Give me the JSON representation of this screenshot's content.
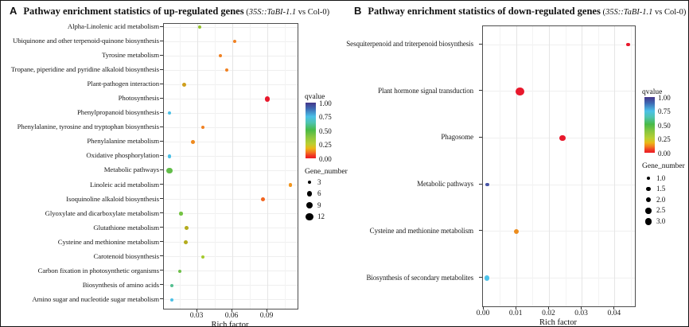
{
  "chart_data": [
    {
      "type": "scatter",
      "panel_label": "A",
      "title_main": "Pathway enrichment statistics of up-regulated genes",
      "title_note_prefix": " (",
      "title_note_italic": "35S::TaBI-1.1",
      "title_note_suffix": " vs Col-0)",
      "xlabel": "Rich factor",
      "xlim": [
        0,
        0.117
      ],
      "xticks": [
        0.03,
        0.06,
        0.09
      ],
      "xtick_labels": [
        "0.03",
        "0.06",
        "0.09"
      ],
      "xticks_minor": [
        0.015,
        0.045,
        0.075,
        0.105
      ],
      "grid": true,
      "legend_position": "right",
      "color_legend": {
        "title": "qvalue",
        "tick_labels": [
          "1.00",
          "0.75",
          "0.50",
          "0.25",
          "0.00"
        ],
        "gradient_stops": [
          {
            "color": "#443589",
            "pos": 0
          },
          {
            "color": "#3e6ab3",
            "pos": 11
          },
          {
            "color": "#4cc1e8",
            "pos": 25
          },
          {
            "color": "#4fc4b0",
            "pos": 36
          },
          {
            "color": "#49ba47",
            "pos": 49
          },
          {
            "color": "#8bc63f",
            "pos": 62
          },
          {
            "color": "#b9cf33",
            "pos": 74
          },
          {
            "color": "#eab818",
            "pos": 82
          },
          {
            "color": "#f4791f",
            "pos": 89
          },
          {
            "color": "#ef3824",
            "pos": 95
          },
          {
            "color": "#ec1c24",
            "pos": 100
          }
        ]
      },
      "size_legend": {
        "title": "Gene_number",
        "tick_labels": [
          "3",
          "6",
          "9",
          "12"
        ],
        "values": [
          3,
          6,
          9,
          12
        ]
      },
      "points": [
        {
          "pathway": "Alpha-Linolenic acid metabolism",
          "rich_factor": 0.032,
          "gene_number": 3,
          "qvalue_approx": 0.3,
          "color": "#93c22c"
        },
        {
          "pathway": "Ubiquinone and other terpenoid-quinone biosynthesis",
          "rich_factor": 0.062,
          "gene_number": 3,
          "qvalue_approx": 0.1,
          "color": "#f08122"
        },
        {
          "pathway": "Tyrosine metabolism",
          "rich_factor": 0.05,
          "gene_number": 3,
          "qvalue_approx": 0.1,
          "color": "#f08122"
        },
        {
          "pathway": "Tropane, piperidine and pyridine alkaloid biosynthesis",
          "rich_factor": 0.055,
          "gene_number": 3,
          "qvalue_approx": 0.1,
          "color": "#f08122"
        },
        {
          "pathway": "Plant-pathogen interaction",
          "rich_factor": 0.019,
          "gene_number": 4,
          "qvalue_approx": 0.2,
          "color": "#cf9f1e"
        },
        {
          "pathway": "Photosynthesis",
          "rich_factor": 0.09,
          "gene_number": 9,
          "qvalue_approx": 0.01,
          "color": "#e8182c"
        },
        {
          "pathway": "Phenylpropanoid biosynthesis",
          "rich_factor": 0.006,
          "gene_number": 3,
          "qvalue_approx": 0.7,
          "color": "#4bc0e6"
        },
        {
          "pathway": "Phenylalanine, tyrosine and tryptophan biosynthesis",
          "rich_factor": 0.035,
          "gene_number": 3,
          "qvalue_approx": 0.1,
          "color": "#f08122"
        },
        {
          "pathway": "Phenylalanine metabolism",
          "rich_factor": 0.026,
          "gene_number": 4,
          "qvalue_approx": 0.12,
          "color": "#ee8a1e"
        },
        {
          "pathway": "Oxidative phosphorylation",
          "rich_factor": 0.006,
          "gene_number": 3,
          "qvalue_approx": 0.7,
          "color": "#4bc0e6"
        },
        {
          "pathway": "Metabolic pathways",
          "rich_factor": 0.006,
          "gene_number": 12,
          "qvalue_approx": 0.4,
          "color": "#62bd4a"
        },
        {
          "pathway": "Linoleic acid metabolism",
          "rich_factor": 0.11,
          "gene_number": 3,
          "qvalue_approx": 0.12,
          "color": "#f3951c"
        },
        {
          "pathway": "Isoquinoline alkaloid biosynthesis",
          "rich_factor": 0.086,
          "gene_number": 4,
          "qvalue_approx": 0.05,
          "color": "#f2641f"
        },
        {
          "pathway": "Glyoxylate and dicarboxylate metabolism",
          "rich_factor": 0.016,
          "gene_number": 3,
          "qvalue_approx": 0.35,
          "color": "#74c343"
        },
        {
          "pathway": "Glutathione metabolism",
          "rich_factor": 0.021,
          "gene_number": 4,
          "qvalue_approx": 0.22,
          "color": "#b4ac1e"
        },
        {
          "pathway": "Cysteine and methionine metabolism",
          "rich_factor": 0.02,
          "gene_number": 4,
          "qvalue_approx": 0.22,
          "color": "#b4ac1e"
        },
        {
          "pathway": "Carotenoid biosynthesis",
          "rich_factor": 0.035,
          "gene_number": 3,
          "qvalue_approx": 0.28,
          "color": "#a5ca2e"
        },
        {
          "pathway": "Carbon fixation in photosynthetic organisms",
          "rich_factor": 0.015,
          "gene_number": 3,
          "qvalue_approx": 0.38,
          "color": "#6ec04a"
        },
        {
          "pathway": "Biosynthesis of amino acids",
          "rich_factor": 0.008,
          "gene_number": 3,
          "qvalue_approx": 0.55,
          "color": "#54bf90"
        },
        {
          "pathway": "Amino sugar and nucleotide sugar metabolism",
          "rich_factor": 0.008,
          "gene_number": 3,
          "qvalue_approx": 0.7,
          "color": "#4bc0e6"
        }
      ]
    },
    {
      "type": "scatter",
      "panel_label": "B",
      "title_main": "Pathway enrichment statistics of down-regulated genes",
      "title_note_prefix": " (",
      "title_note_italic": "35S::TaBI-1.1",
      "title_note_suffix": " vs Col-0)",
      "xlabel": "Rich factor",
      "xlim": [
        0,
        0.046
      ],
      "xticks": [
        0,
        0.01,
        0.02,
        0.03,
        0.04
      ],
      "xtick_labels": [
        "0.00",
        "0.01",
        "0.02",
        "0.03",
        "0.04"
      ],
      "xticks_minor": [
        0.005,
        0.015,
        0.025,
        0.035,
        0.045
      ],
      "grid": true,
      "legend_position": "right",
      "color_legend": {
        "title": "qvalue",
        "tick_labels": [
          "1.00",
          "0.75",
          "0.50",
          "0.25",
          "0.00"
        ],
        "gradient_stops": [
          {
            "color": "#443589",
            "pos": 0
          },
          {
            "color": "#3e6ab3",
            "pos": 11
          },
          {
            "color": "#4cc1e8",
            "pos": 25
          },
          {
            "color": "#4fc4b0",
            "pos": 36
          },
          {
            "color": "#49ba47",
            "pos": 49
          },
          {
            "color": "#8bc63f",
            "pos": 62
          },
          {
            "color": "#b9cf33",
            "pos": 74
          },
          {
            "color": "#eab818",
            "pos": 82
          },
          {
            "color": "#f4791f",
            "pos": 89
          },
          {
            "color": "#ef3824",
            "pos": 95
          },
          {
            "color": "#ec1c24",
            "pos": 100
          }
        ]
      },
      "size_legend": {
        "title": "Gene_number",
        "tick_labels": [
          "1.0",
          "1.5",
          "2.0",
          "2.5",
          "3.0"
        ],
        "values": [
          1.0,
          1.5,
          2.0,
          2.5,
          3.0
        ]
      },
      "points": [
        {
          "pathway": "Sesquiterpenoid and triterpenoid biosynthesis",
          "rich_factor": 0.044,
          "gene_number": 1.0,
          "qvalue_approx": 0.01,
          "color": "#e8182c"
        },
        {
          "pathway": "Plant hormone signal transduction",
          "rich_factor": 0.011,
          "gene_number": 3.0,
          "qvalue_approx": 0.01,
          "color": "#e8182c"
        },
        {
          "pathway": "Phagosome",
          "rich_factor": 0.024,
          "gene_number": 2.0,
          "qvalue_approx": 0.02,
          "color": "#e8182c"
        },
        {
          "pathway": "Metabolic pathways",
          "rich_factor": 0.001,
          "gene_number": 1.0,
          "qvalue_approx": 0.9,
          "color": "#4b57a7"
        },
        {
          "pathway": "Cysteine and methionine metabolism",
          "rich_factor": 0.01,
          "gene_number": 1.5,
          "qvalue_approx": 0.1,
          "color": "#ec8c1d"
        },
        {
          "pathway": "Biosynthesis of secondary metabolites",
          "rich_factor": 0.001,
          "gene_number": 1.5,
          "qvalue_approx": 0.7,
          "color": "#4dc3ea"
        }
      ]
    }
  ]
}
